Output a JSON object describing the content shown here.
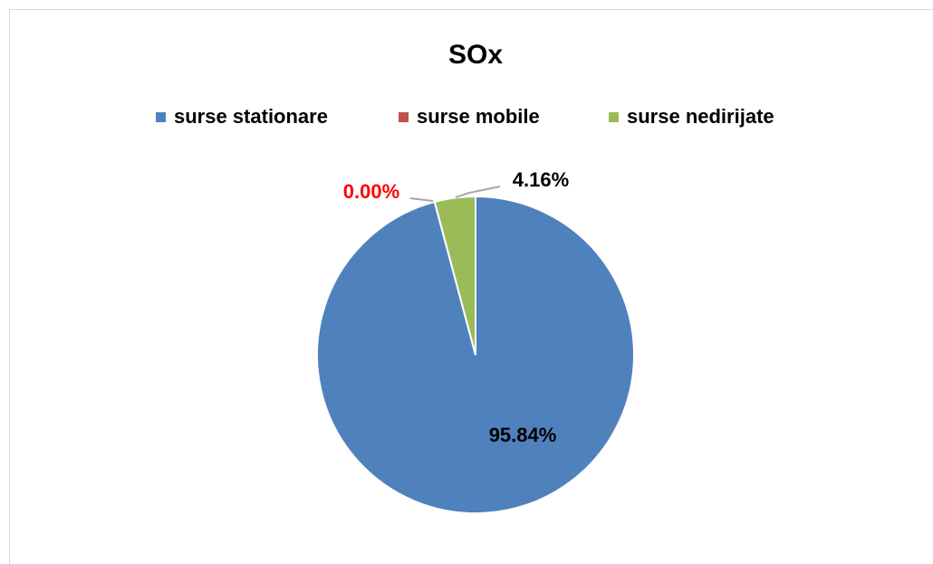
{
  "chart_data": {
    "type": "pie",
    "title": "SOx",
    "categories": [
      "surse stationare",
      "surse mobile",
      "surse nedirijate"
    ],
    "values": [
      95.84,
      0,
      4.16
    ],
    "value_labels": [
      "95.84%",
      "0.00%",
      "4.16%"
    ],
    "colors": [
      "#4f81bd",
      "#c0504d",
      "#9bbb59"
    ],
    "label_colors": [
      "#000000",
      "#ff0000",
      "#000000"
    ],
    "legend": "top"
  }
}
